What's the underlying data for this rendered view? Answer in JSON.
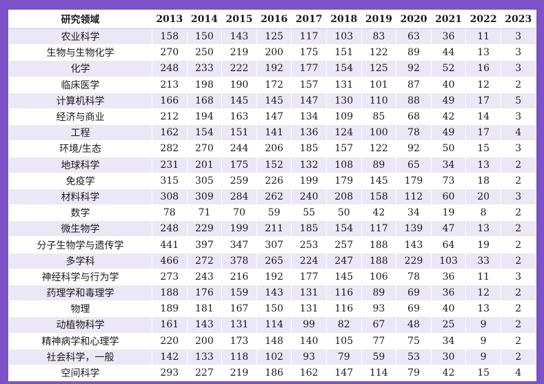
{
  "table": {
    "header_label": "研究领域",
    "years": [
      "2013",
      "2014",
      "2015",
      "2016",
      "2017",
      "2018",
      "2019",
      "2020",
      "2021",
      "2022",
      "2023"
    ],
    "rows": [
      {
        "field": "农业科学",
        "values": [
          "158",
          "150",
          "143",
          "125",
          "117",
          "103",
          "83",
          "63",
          "36",
          "11",
          "3"
        ]
      },
      {
        "field": "生物与生物化学",
        "values": [
          "270",
          "250",
          "219",
          "200",
          "175",
          "151",
          "122",
          "89",
          "44",
          "13",
          "3"
        ]
      },
      {
        "field": "化学",
        "values": [
          "248",
          "233",
          "222",
          "192",
          "177",
          "154",
          "125",
          "92",
          "52",
          "16",
          "3"
        ]
      },
      {
        "field": "临床医学",
        "values": [
          "213",
          "198",
          "190",
          "172",
          "157",
          "131",
          "101",
          "87",
          "40",
          "12",
          "2"
        ]
      },
      {
        "field": "计算机科学",
        "values": [
          "166",
          "168",
          "145",
          "145",
          "147",
          "130",
          "110",
          "88",
          "49",
          "17",
          "5"
        ]
      },
      {
        "field": "经济与商业",
        "values": [
          "212",
          "194",
          "163",
          "147",
          "134",
          "109",
          "85",
          "68",
          "42",
          "14",
          "3"
        ]
      },
      {
        "field": "工程",
        "values": [
          "162",
          "154",
          "151",
          "141",
          "136",
          "124",
          "100",
          "78",
          "49",
          "17",
          "4"
        ]
      },
      {
        "field": "环境/生态",
        "values": [
          "282",
          "270",
          "244",
          "206",
          "185",
          "157",
          "122",
          "92",
          "50",
          "15",
          "3"
        ]
      },
      {
        "field": "地球科学",
        "values": [
          "231",
          "201",
          "175",
          "152",
          "132",
          "108",
          "89",
          "65",
          "34",
          "13",
          "2"
        ]
      },
      {
        "field": "免疫学",
        "values": [
          "315",
          "305",
          "259",
          "226",
          "199",
          "179",
          "145",
          "179",
          "73",
          "18",
          "2"
        ]
      },
      {
        "field": "材料科学",
        "values": [
          "308",
          "309",
          "284",
          "262",
          "240",
          "208",
          "158",
          "112",
          "60",
          "20",
          "3"
        ]
      },
      {
        "field": "数学",
        "values": [
          "78",
          "71",
          "70",
          "59",
          "55",
          "50",
          "42",
          "34",
          "19",
          "8",
          "2"
        ]
      },
      {
        "field": "微生物学",
        "values": [
          "248",
          "229",
          "199",
          "211",
          "185",
          "154",
          "117",
          "139",
          "47",
          "13",
          "2"
        ]
      },
      {
        "field": "分子生物学与遗传学",
        "values": [
          "441",
          "397",
          "347",
          "307",
          "253",
          "257",
          "188",
          "143",
          "64",
          "19",
          "2"
        ]
      },
      {
        "field": "多学科",
        "values": [
          "466",
          "272",
          "378",
          "265",
          "224",
          "247",
          "188",
          "229",
          "103",
          "33",
          "2"
        ]
      },
      {
        "field": "神经科学与行为学",
        "values": [
          "273",
          "243",
          "216",
          "192",
          "177",
          "145",
          "106",
          "78",
          "36",
          "11",
          "3"
        ]
      },
      {
        "field": "药理学和毒理学",
        "values": [
          "188",
          "176",
          "159",
          "143",
          "131",
          "116",
          "89",
          "69",
          "36",
          "12",
          "2"
        ]
      },
      {
        "field": "物理",
        "values": [
          "189",
          "181",
          "167",
          "150",
          "131",
          "116",
          "93",
          "69",
          "40",
          "13",
          "2"
        ]
      },
      {
        "field": "动植物科学",
        "values": [
          "161",
          "143",
          "131",
          "114",
          "99",
          "82",
          "67",
          "48",
          "25",
          "9",
          "2"
        ]
      },
      {
        "field": "精神病学和心理学",
        "values": [
          "220",
          "200",
          "173",
          "148",
          "140",
          "105",
          "77",
          "75",
          "34",
          "9",
          "2"
        ]
      },
      {
        "field": "社会科学，一般",
        "values": [
          "142",
          "133",
          "118",
          "102",
          "93",
          "79",
          "59",
          "53",
          "30",
          "9",
          "2"
        ]
      },
      {
        "field": "空间科学",
        "values": [
          "293",
          "227",
          "219",
          "186",
          "162",
          "147",
          "114",
          "79",
          "42",
          "15",
          "4"
        ]
      }
    ]
  },
  "colors": {
    "border": "#7b52c7",
    "row_stripe": "#ebe7f4",
    "row_plain": "#ffffff"
  }
}
